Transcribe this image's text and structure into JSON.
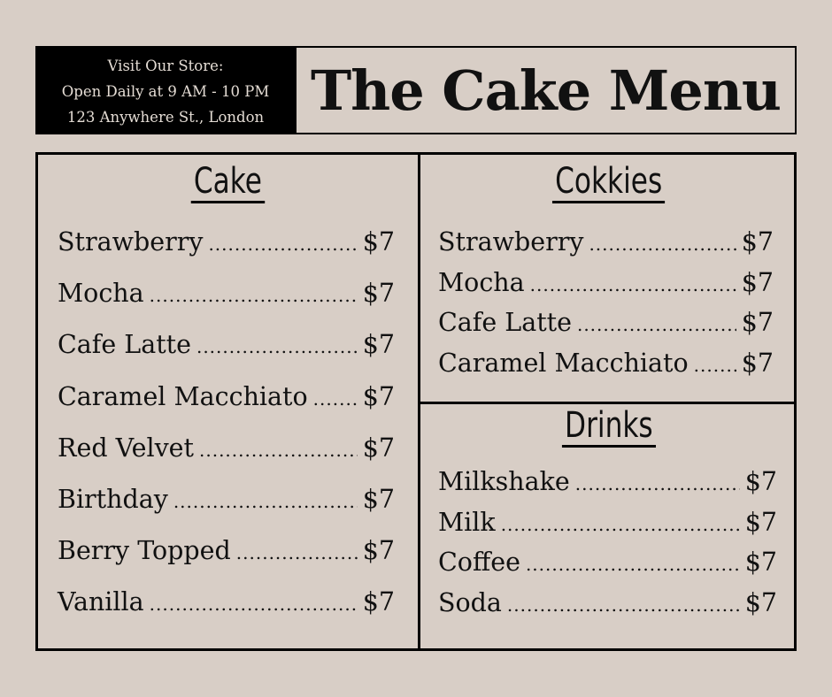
{
  "store": {
    "line1": "Visit Our Store:",
    "line2": "Open Daily at 9 AM - 10 PM",
    "line3": "123 Anywhere St., London"
  },
  "title": "The Cake Menu",
  "colors": {
    "background": "#d8cec6",
    "ink": "#000000"
  },
  "sections": [
    {
      "heading": "Cake",
      "items": [
        {
          "name": "Strawberry",
          "price": "$7"
        },
        {
          "name": "Mocha",
          "price": "$7"
        },
        {
          "name": "Cafe Latte",
          "price": "$7"
        },
        {
          "name": "Caramel Macchiato",
          "price": "$7"
        },
        {
          "name": "Red Velvet",
          "price": "$7"
        },
        {
          "name": "Birthday",
          "price": "$7"
        },
        {
          "name": "Berry Topped",
          "price": "$7"
        },
        {
          "name": "Vanilla",
          "price": "$7"
        }
      ]
    },
    {
      "heading": "Cokkies",
      "items": [
        {
          "name": "Strawberry",
          "price": "$7"
        },
        {
          "name": "Mocha",
          "price": "$7"
        },
        {
          "name": "Cafe Latte",
          "price": "$7"
        },
        {
          "name": "Caramel Macchiato",
          "price": "$7"
        }
      ]
    },
    {
      "heading": "Drinks",
      "items": [
        {
          "name": "Milkshake",
          "price": "$7"
        },
        {
          "name": "Milk",
          "price": "$7"
        },
        {
          "name": "Coffee",
          "price": "$7"
        },
        {
          "name": "Soda",
          "price": "$7"
        }
      ]
    }
  ]
}
